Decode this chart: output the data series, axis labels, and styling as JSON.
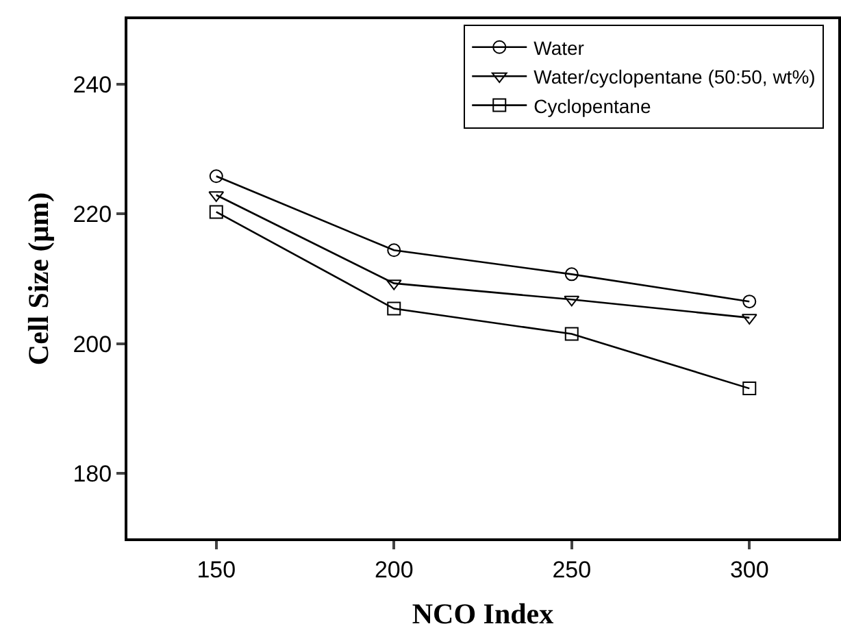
{
  "chart_data": {
    "type": "line",
    "xlabel": "NCO Index",
    "ylabel": "Cell Size (μm)",
    "x": [
      150,
      200,
      250,
      300
    ],
    "series": [
      {
        "name": "Water",
        "color": "#000000",
        "marker": "circle",
        "values": [
          225.8,
          214.4,
          210.7,
          206.5
        ]
      },
      {
        "name": "Water/cyclopentane (50:50, wt%)",
        "color": "#000000",
        "marker": "triangle",
        "values": [
          222.9,
          209.3,
          206.8,
          204.0
        ]
      },
      {
        "name": "Cyclopentane",
        "color": "#000000",
        "marker": "square",
        "values": [
          220.3,
          205.4,
          201.5,
          193.1
        ]
      }
    ],
    "xlim": [
      125,
      325
    ],
    "xticks": [
      150,
      200,
      250,
      300
    ],
    "ylim": [
      170,
      250
    ],
    "yticks": [
      180,
      200,
      220,
      240
    ],
    "grid": false,
    "legend": "top right",
    "line_style": "solid"
  }
}
